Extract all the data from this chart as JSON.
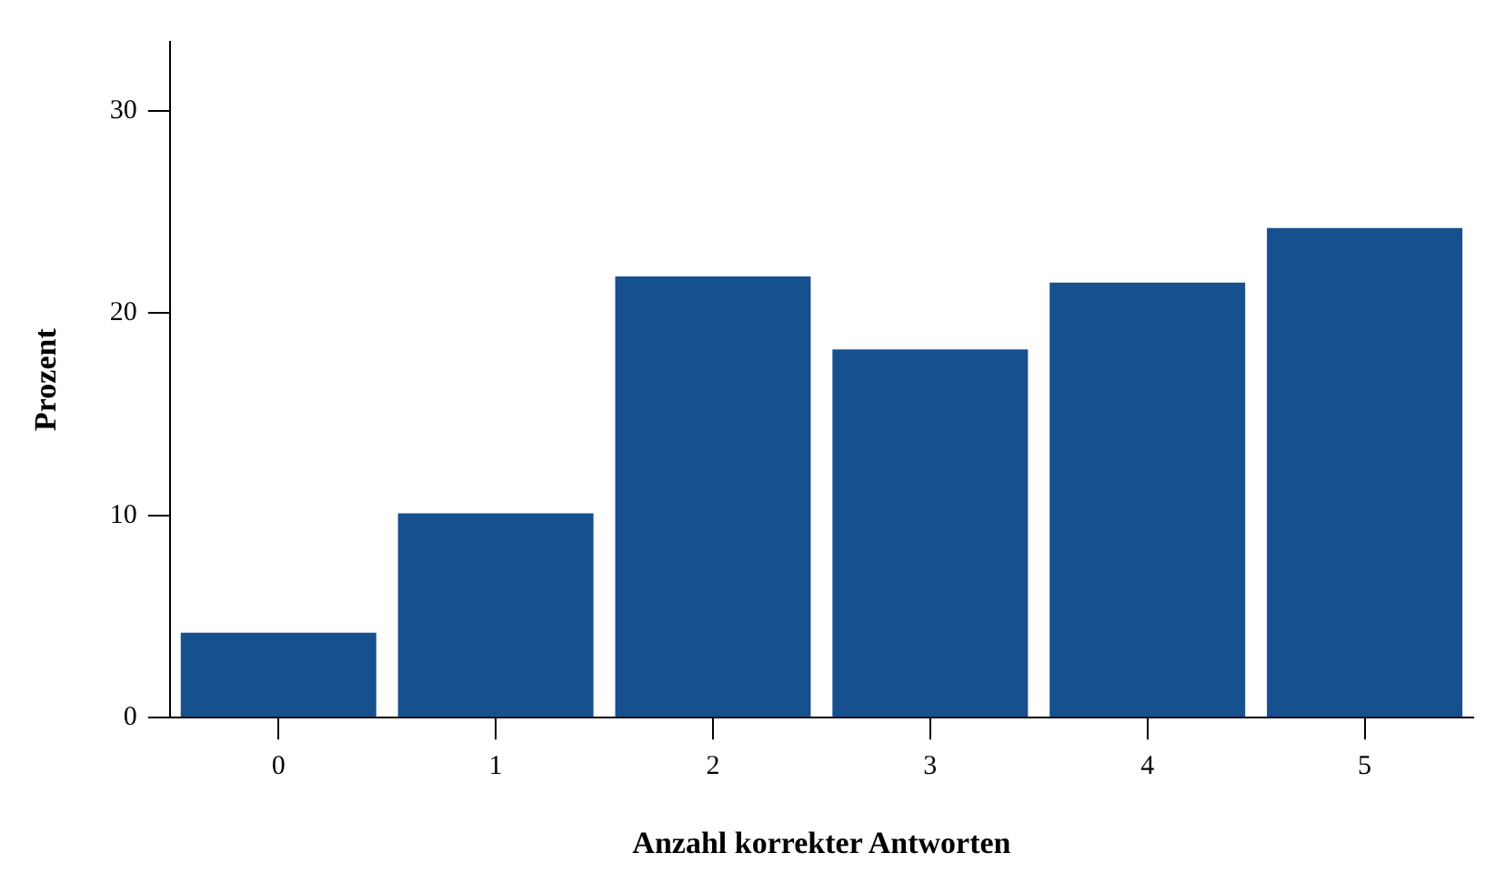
{
  "chart_data": {
    "type": "bar",
    "xlabel": "Anzahl korrekter Antworten",
    "ylabel": "Prozent",
    "categories": [
      "0",
      "1",
      "2",
      "3",
      "4",
      "5"
    ],
    "series": [
      {
        "color": "#16508f",
        "values": [
          4.2,
          10.1,
          21.8,
          18.2,
          21.5,
          24.2
        ]
      }
    ],
    "ylim": [
      0,
      33.4
    ],
    "yticks": [
      0,
      10,
      20,
      30
    ],
    "grid": false,
    "legend": false
  }
}
